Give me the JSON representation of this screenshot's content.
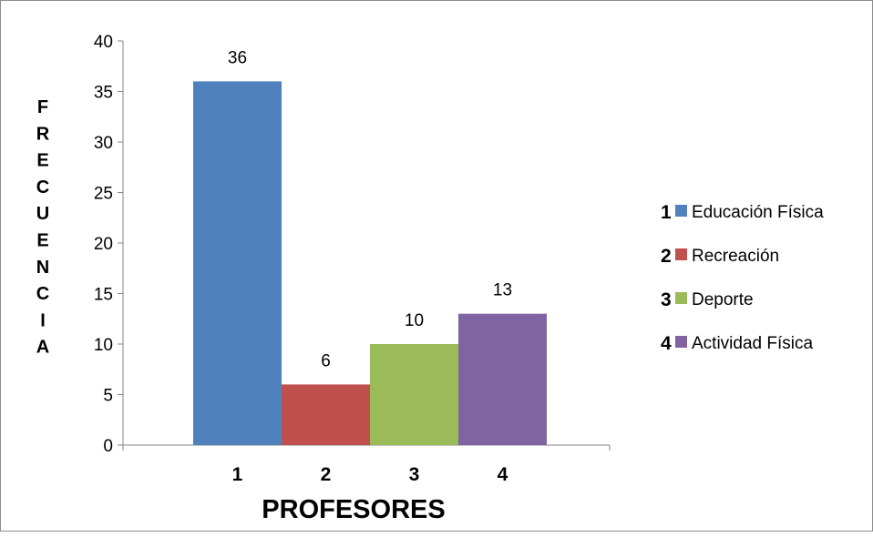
{
  "chart_data": {
    "type": "bar",
    "categories": [
      "1",
      "2",
      "3",
      "4"
    ],
    "values": [
      36,
      6,
      10,
      13
    ],
    "data_labels": [
      "36",
      "6",
      "10",
      "13"
    ],
    "colors": [
      "#4f81bd",
      "#c0504d",
      "#9bbb59",
      "#8064a2"
    ],
    "xlabel": "PROFESORES",
    "ylabel": "FRECUENCIA",
    "ylim": [
      0,
      40
    ],
    "yticks": [
      "0",
      "5",
      "10",
      "15",
      "20",
      "25",
      "30",
      "35",
      "40"
    ],
    "grid": false,
    "legend_position": "right",
    "legend": [
      {
        "number": "1",
        "label": "Educación Física"
      },
      {
        "number": "2",
        "label": "Recreación"
      },
      {
        "number": "3",
        "label": "Deporte"
      },
      {
        "number": "4",
        "label": "Actividad Física"
      }
    ]
  }
}
